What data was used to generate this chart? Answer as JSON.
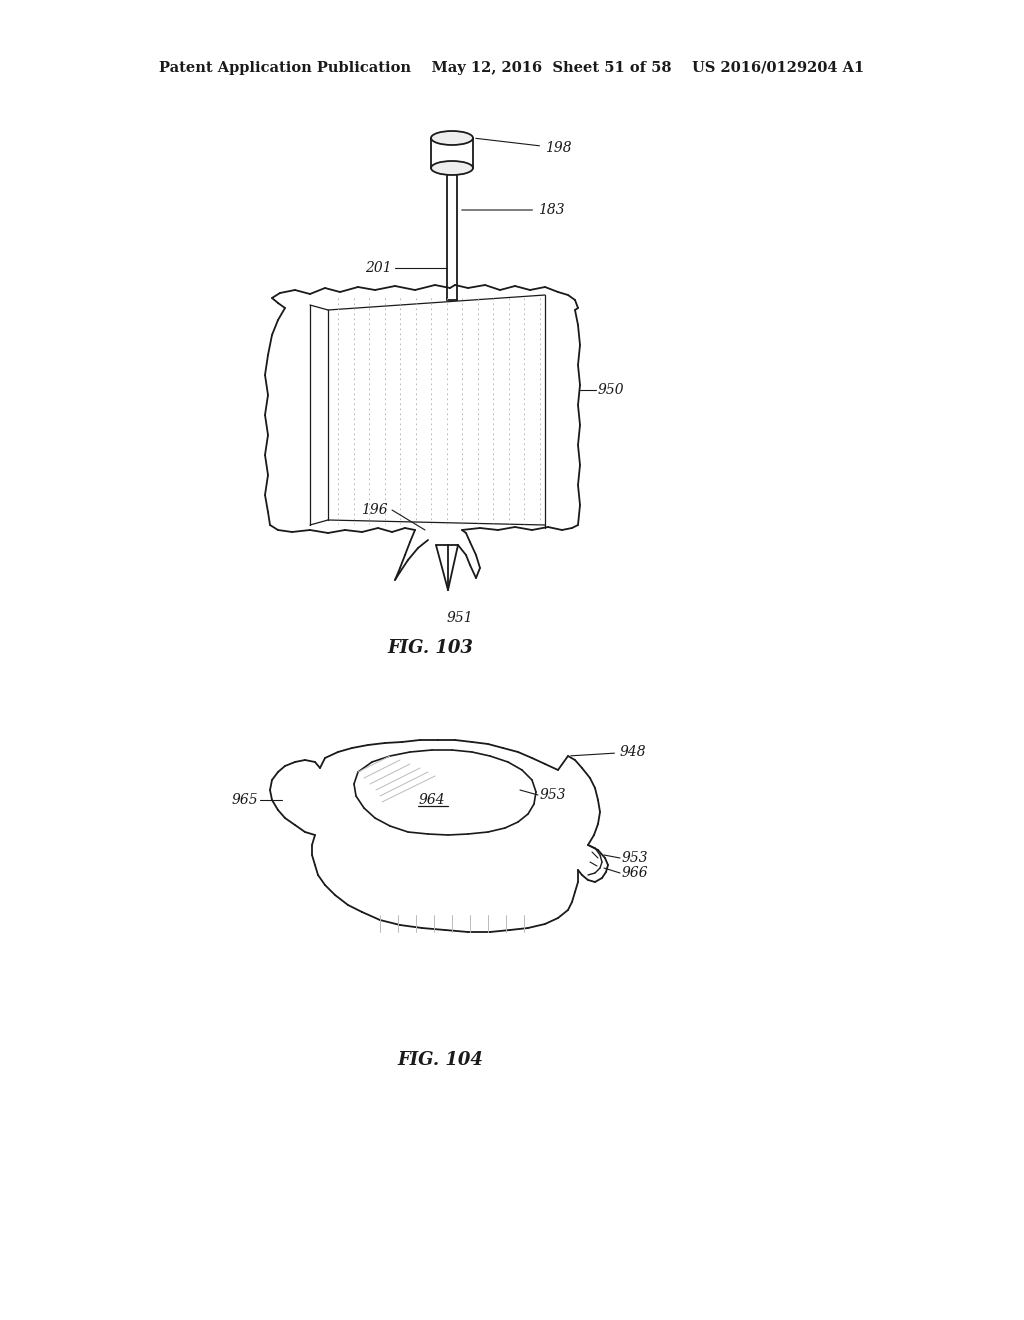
{
  "background_color": "#ffffff",
  "header_text": "Patent Application Publication    May 12, 2016  Sheet 51 of 58    US 2016/0129204 A1",
  "line_color": "#1a1a1a",
  "annotation_fontsize": 10,
  "fig_label_fontsize": 12
}
